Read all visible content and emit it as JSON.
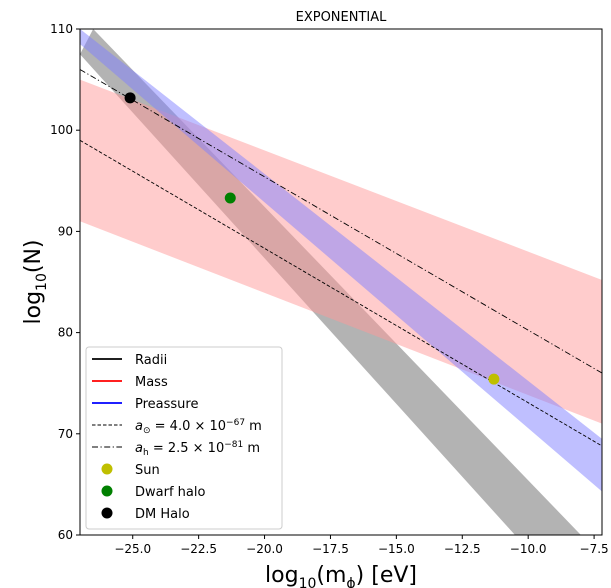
{
  "chart_data": {
    "type": "line",
    "title": "EXPONENTIAL",
    "xlabel_base": "log",
    "xlabel_sub": "10",
    "xlabel_arg": "(m",
    "xlabel_argsub": "ϕ",
    "xlabel_tail": ") [eV]",
    "ylabel_base": "log",
    "ylabel_sub": "10",
    "ylabel_tail": "(N)",
    "xlim": [
      -27,
      -7.2
    ],
    "ylim": [
      60,
      110
    ],
    "xticks": [
      -25.0,
      -22.5,
      -20.0,
      -17.5,
      -15.0,
      -12.5,
      -10.0,
      -7.5
    ],
    "xtick_labels": [
      "−25.0",
      "−22.5",
      "−20.0",
      "−17.5",
      "−15.0",
      "−12.5",
      "−10.0",
      "−7.5"
    ],
    "yticks": [
      60,
      70,
      80,
      90,
      100,
      110
    ],
    "ytick_labels": [
      "60",
      "70",
      "80",
      "90",
      "100",
      "110"
    ],
    "bands": [
      {
        "name": "Radii",
        "color": "#999999",
        "opacity": 0.75,
        "upper": [
          [
            -26.5,
            110
          ],
          [
            -8.0,
            60
          ]
        ],
        "lower": [
          [
            -27.0,
            107.5
          ],
          [
            -10.5,
            60
          ]
        ]
      },
      {
        "name": "Mass",
        "color": "#ff9999",
        "opacity": 0.5,
        "upper": [
          [
            -27.0,
            105.0
          ],
          [
            -7.2,
            85.2
          ]
        ],
        "lower": [
          [
            -27.0,
            91.0
          ],
          [
            -7.2,
            71.0
          ]
        ]
      },
      {
        "name": "Preassure",
        "color": "#8080ff",
        "opacity": 0.5,
        "upper": [
          [
            -27.0,
            110.0
          ],
          [
            -7.2,
            69.5
          ]
        ],
        "lower": [
          [
            -27.0,
            108.5
          ],
          [
            -7.2,
            64.3
          ]
        ]
      }
    ],
    "lines": [
      {
        "name": "a_sun",
        "style": "dashed",
        "points": [
          [
            -27.0,
            99.0
          ],
          [
            -7.2,
            68.8
          ]
        ]
      },
      {
        "name": "a_h",
        "style": "dashdot",
        "points": [
          [
            -27.0,
            106.0
          ],
          [
            -7.2,
            76.0
          ]
        ]
      }
    ],
    "points": [
      {
        "name": "Sun",
        "x": -11.3,
        "y": 75.4,
        "color": "#bfbf00"
      },
      {
        "name": "Dwarf halo",
        "x": -21.3,
        "y": 93.3,
        "color": "#008000"
      },
      {
        "name": "DM Halo",
        "x": -25.1,
        "y": 103.2,
        "color": "#000000"
      }
    ],
    "legend": {
      "placement": "lower-left",
      "entries": [
        {
          "kind": "line",
          "label": "Radii",
          "color": "#000000",
          "style": "solid"
        },
        {
          "kind": "line",
          "label": "Mass",
          "color": "#ff0000",
          "style": "solid"
        },
        {
          "kind": "line",
          "label": "Preassure",
          "color": "#0000ff",
          "style": "solid"
        },
        {
          "kind": "line",
          "label_pre": "a",
          "label_sub": "⊙",
          "label_mid": " = 4.0 × 10",
          "label_sup": "−67",
          "label_post": " m",
          "color": "#000000",
          "style": "dashed"
        },
        {
          "kind": "line",
          "label_pre": "a",
          "label_sub": "h",
          "label_mid": " = 2.5 × 10",
          "label_sup": "−81",
          "label_post": " m",
          "color": "#000000",
          "style": "dashdot"
        },
        {
          "kind": "dot",
          "label": "Sun",
          "color": "#bfbf00"
        },
        {
          "kind": "dot",
          "label": "Dwarf halo",
          "color": "#008000"
        },
        {
          "kind": "dot",
          "label": "DM Halo",
          "color": "#000000"
        }
      ]
    }
  }
}
